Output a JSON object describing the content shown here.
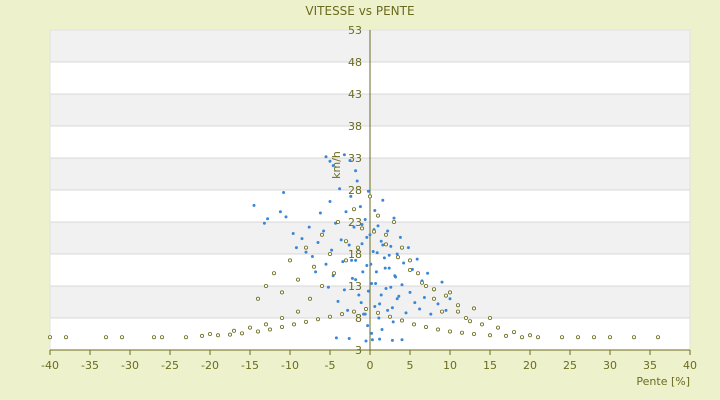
{
  "chart_data": {
    "type": "scatter",
    "title": "VITESSE vs PENTE",
    "xlabel": "Pente [%]",
    "ylabel": "km/h",
    "xlim": [
      -40,
      40
    ],
    "ylim": [
      3,
      53
    ],
    "x_ticks": [
      -40,
      -35,
      -30,
      -25,
      -20,
      -15,
      -10,
      -5,
      0,
      5,
      10,
      15,
      20,
      25,
      30,
      35,
      40
    ],
    "x_tick_labels": [
      "-40",
      "-35",
      "-30",
      "-25",
      "-20",
      "-15",
      "-10",
      "-5",
      "0",
      "5",
      "10",
      "15",
      "20",
      "25",
      "30",
      "35",
      "40"
    ],
    "y_ticks": [
      3,
      8,
      13,
      18,
      23,
      28,
      33,
      38,
      43,
      48,
      53
    ],
    "y_tick_labels": [
      "3",
      "8",
      "13",
      "18",
      "23",
      "28",
      "33",
      "38",
      "43",
      "48",
      "53"
    ],
    "grid": true,
    "legend": "none",
    "series": [
      {
        "color": "#3a87d8",
        "values": [
          [
            -5.5,
            33.2
          ],
          [
            -5.0,
            32.5
          ],
          [
            -4.6,
            31.8
          ],
          [
            -3.2,
            33.5
          ],
          [
            -2.5,
            32.6
          ],
          [
            -1.8,
            31.0
          ],
          [
            -14.5,
            25.6
          ],
          [
            -13.2,
            22.8
          ],
          [
            -12.8,
            23.5
          ],
          [
            -11.2,
            24.6
          ],
          [
            -10.5,
            23.8
          ],
          [
            -10.8,
            27.6
          ],
          [
            -9.6,
            21.2
          ],
          [
            -9.2,
            19.0
          ],
          [
            -8.5,
            20.4
          ],
          [
            -8.0,
            18.3
          ],
          [
            -7.6,
            22.2
          ],
          [
            -7.2,
            17.6
          ],
          [
            -6.8,
            15.2
          ],
          [
            -6.5,
            19.8
          ],
          [
            -6.2,
            24.4
          ],
          [
            -5.8,
            21.6
          ],
          [
            -5.5,
            16.4
          ],
          [
            -5.2,
            12.8
          ],
          [
            -5.0,
            26.2
          ],
          [
            -4.8,
            18.6
          ],
          [
            -4.6,
            14.6
          ],
          [
            -4.3,
            22.8
          ],
          [
            -4.0,
            10.6
          ],
          [
            -3.8,
            28.2
          ],
          [
            -3.6,
            20.2
          ],
          [
            -3.4,
            16.8
          ],
          [
            -3.2,
            12.4
          ],
          [
            -3.0,
            24.6
          ],
          [
            -2.8,
            9.2
          ],
          [
            -2.6,
            19.4
          ],
          [
            -2.4,
            27.0
          ],
          [
            -2.2,
            14.2
          ],
          [
            -2.0,
            22.2
          ],
          [
            -1.8,
            17.0
          ],
          [
            -1.6,
            29.4
          ],
          [
            -1.4,
            11.6
          ],
          [
            -1.2,
            25.4
          ],
          [
            -1.0,
            19.6
          ],
          [
            -0.8,
            8.6
          ],
          [
            -0.6,
            23.4
          ],
          [
            -0.4,
            16.2
          ],
          [
            -0.2,
            27.8
          ],
          [
            0.0,
            21.0
          ],
          [
            0.2,
            13.4
          ],
          [
            0.4,
            18.4
          ],
          [
            0.6,
            24.8
          ],
          [
            0.8,
            15.2
          ],
          [
            1.0,
            22.4
          ],
          [
            1.2,
            10.2
          ],
          [
            1.4,
            20.0
          ],
          [
            1.6,
            26.4
          ],
          [
            1.8,
            17.4
          ],
          [
            2.0,
            12.6
          ],
          [
            2.2,
            21.6
          ],
          [
            2.4,
            15.8
          ],
          [
            2.6,
            19.2
          ],
          [
            2.8,
            9.6
          ],
          [
            3.0,
            23.6
          ],
          [
            3.2,
            14.4
          ],
          [
            3.4,
            18.0
          ],
          [
            3.6,
            11.4
          ],
          [
            3.8,
            20.6
          ],
          [
            4.0,
            13.2
          ],
          [
            4.2,
            16.6
          ],
          [
            4.5,
            8.8
          ],
          [
            4.8,
            19.0
          ],
          [
            5.0,
            12.0
          ],
          [
            5.3,
            15.6
          ],
          [
            5.6,
            10.4
          ],
          [
            5.9,
            17.2
          ],
          [
            6.2,
            9.4
          ],
          [
            6.5,
            13.8
          ],
          [
            6.8,
            11.2
          ],
          [
            7.2,
            15.0
          ],
          [
            7.6,
            8.6
          ],
          [
            8.0,
            12.4
          ],
          [
            8.5,
            10.2
          ],
          [
            9.0,
            13.6
          ],
          [
            9.5,
            9.2
          ],
          [
            10.0,
            11.0
          ],
          [
            0.3,
            4.6
          ],
          [
            -0.5,
            4.4
          ],
          [
            1.2,
            4.7
          ],
          [
            -2.6,
            4.8
          ],
          [
            2.8,
            4.5
          ],
          [
            -4.2,
            4.9
          ],
          [
            4.0,
            4.6
          ],
          [
            -1.0,
            22.6
          ],
          [
            0.5,
            21.8
          ],
          [
            -0.4,
            20.6
          ],
          [
            1.6,
            19.4
          ],
          [
            -1.5,
            18.8
          ],
          [
            0.9,
            18.2
          ],
          [
            2.4,
            17.8
          ],
          [
            -2.3,
            17.0
          ],
          [
            0.1,
            16.4
          ],
          [
            1.9,
            15.8
          ],
          [
            -0.9,
            15.2
          ],
          [
            3.1,
            14.6
          ],
          [
            -1.8,
            14.0
          ],
          [
            0.7,
            13.4
          ],
          [
            2.6,
            12.8
          ],
          [
            -0.2,
            12.2
          ],
          [
            1.4,
            11.6
          ],
          [
            3.4,
            11.0
          ],
          [
            -1.1,
            10.4
          ],
          [
            0.6,
            9.8
          ],
          [
            2.2,
            9.2
          ],
          [
            -0.6,
            8.6
          ],
          [
            1.1,
            8.0
          ],
          [
            2.9,
            7.4
          ],
          [
            -0.3,
            6.8
          ],
          [
            1.5,
            6.2
          ],
          [
            0.2,
            5.6
          ]
        ]
      },
      {
        "color": "#6b6b1f",
        "values": [
          [
            -40.0,
            5.0
          ],
          [
            -38.0,
            5.0
          ],
          [
            -33.0,
            5.0
          ],
          [
            -31.0,
            5.0
          ],
          [
            -27.0,
            5.0
          ],
          [
            -26.0,
            5.0
          ],
          [
            -23.0,
            5.0
          ],
          [
            -21.0,
            5.2
          ],
          [
            -19.0,
            5.3
          ],
          [
            -17.5,
            5.4
          ],
          [
            -16.0,
            5.6
          ],
          [
            -14.0,
            5.9
          ],
          [
            -12.5,
            6.2
          ],
          [
            -11.0,
            6.6
          ],
          [
            -9.5,
            7.0
          ],
          [
            -8.0,
            7.4
          ],
          [
            -6.5,
            7.8
          ],
          [
            -5.0,
            8.2
          ],
          [
            -3.5,
            8.6
          ],
          [
            -2.0,
            9.0
          ],
          [
            -0.5,
            9.4
          ],
          [
            1.0,
            8.8
          ],
          [
            2.5,
            8.2
          ],
          [
            4.0,
            7.6
          ],
          [
            5.5,
            7.0
          ],
          [
            7.0,
            6.6
          ],
          [
            8.5,
            6.2
          ],
          [
            10.0,
            5.9
          ],
          [
            11.5,
            5.7
          ],
          [
            13.0,
            5.5
          ],
          [
            15.0,
            5.3
          ],
          [
            17.0,
            5.2
          ],
          [
            19.0,
            5.0
          ],
          [
            21.0,
            5.0
          ],
          [
            24.0,
            5.0
          ],
          [
            26.0,
            5.0
          ],
          [
            28.0,
            5.0
          ],
          [
            30.0,
            5.0
          ],
          [
            33.0,
            5.0
          ],
          [
            36.0,
            5.0
          ],
          [
            -14.0,
            11.0
          ],
          [
            -13.0,
            13.0
          ],
          [
            -12.0,
            15.0
          ],
          [
            -11.0,
            12.0
          ],
          [
            -10.0,
            17.0
          ],
          [
            -9.0,
            14.0
          ],
          [
            -8.0,
            19.0
          ],
          [
            -7.0,
            16.0
          ],
          [
            -6.0,
            21.0
          ],
          [
            -5.0,
            18.0
          ],
          [
            -4.0,
            23.0
          ],
          [
            -3.0,
            20.0
          ],
          [
            -2.0,
            25.0
          ],
          [
            -1.0,
            22.0
          ],
          [
            0.0,
            27.0
          ],
          [
            1.0,
            24.0
          ],
          [
            2.0,
            21.0
          ],
          [
            3.0,
            23.0
          ],
          [
            4.0,
            19.0
          ],
          [
            5.0,
            17.0
          ],
          [
            6.0,
            15.0
          ],
          [
            7.0,
            13.0
          ],
          [
            8.0,
            11.0
          ],
          [
            9.0,
            9.0
          ],
          [
            10.0,
            12.0
          ],
          [
            11.0,
            10.0
          ],
          [
            12.0,
            8.0
          ],
          [
            13.0,
            9.5
          ],
          [
            14.0,
            7.0
          ],
          [
            15.0,
            8.0
          ],
          [
            16.0,
            6.5
          ],
          [
            -9.0,
            9.0
          ],
          [
            -7.5,
            11.0
          ],
          [
            -6.0,
            13.0
          ],
          [
            -4.5,
            15.0
          ],
          [
            -3.0,
            17.0
          ],
          [
            -1.5,
            19.0
          ],
          [
            0.5,
            21.5
          ],
          [
            2.0,
            19.5
          ],
          [
            3.5,
            17.5
          ],
          [
            5.0,
            15.5
          ],
          [
            6.5,
            13.5
          ],
          [
            8.0,
            12.5
          ],
          [
            9.5,
            11.5
          ],
          [
            11.0,
            9.0
          ],
          [
            12.5,
            7.5
          ],
          [
            -11.0,
            8.0
          ],
          [
            -13.0,
            7.0
          ],
          [
            -15.0,
            6.5
          ],
          [
            -17.0,
            6.0
          ],
          [
            -20.0,
            5.5
          ],
          [
            18.0,
            5.8
          ],
          [
            20.0,
            5.3
          ]
        ]
      }
    ]
  }
}
